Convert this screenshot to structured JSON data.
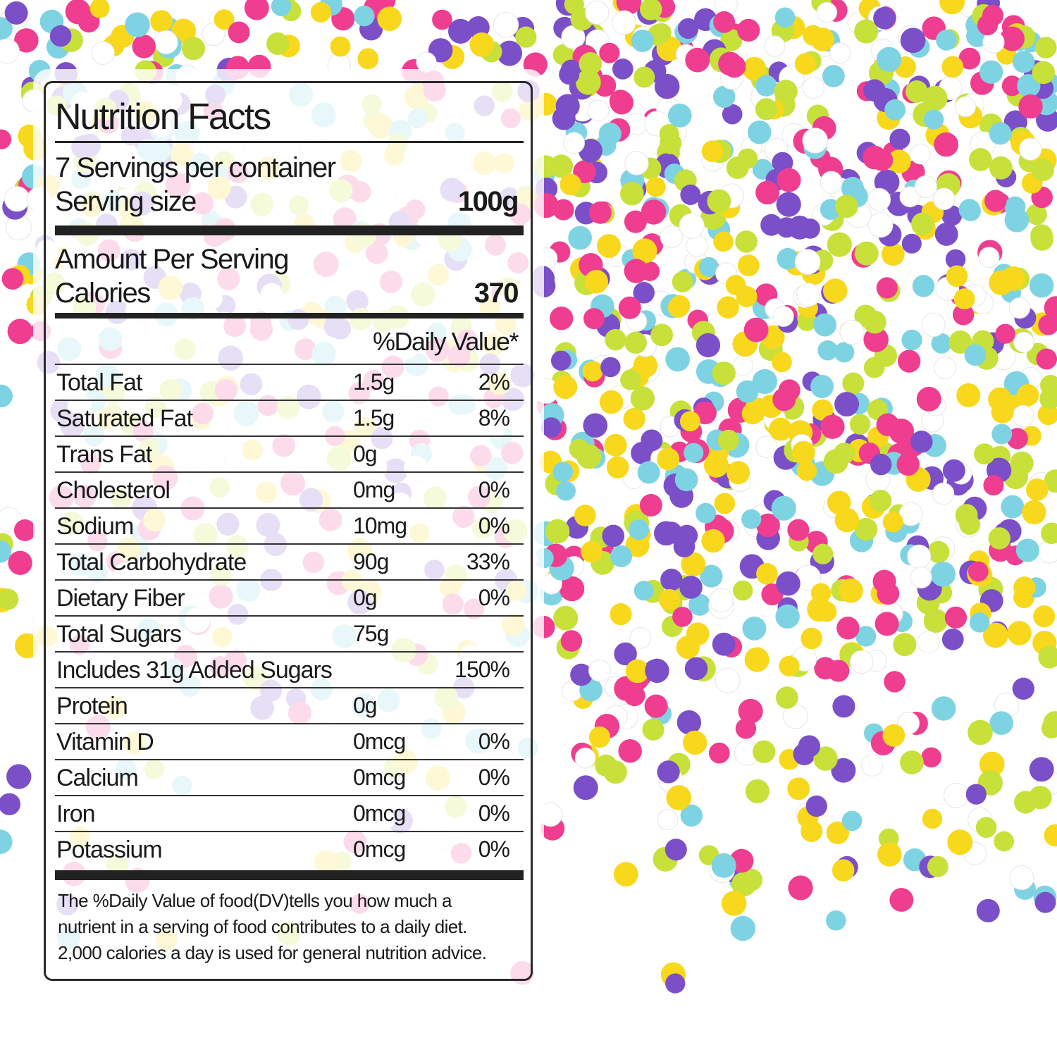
{
  "background": {
    "description_colors": [
      "#c7e03a",
      "#f7d81c",
      "#7ed3e3",
      "#7b4fc8",
      "#ef3d8f",
      "#ffffff"
    ]
  },
  "label": {
    "title": "Nutrition Facts",
    "servings": "7 Servings per container",
    "serving_size_label": "Serving size",
    "serving_size_value": "100g",
    "amount_per_serving": "Amount Per Serving",
    "calories_label": "Calories",
    "calories_value": "370",
    "daily_value_header": "%Daily Value*",
    "rows": [
      {
        "name": "Total Fat",
        "amount": "1.5g",
        "dv": "2%"
      },
      {
        "name": "Saturated Fat",
        "amount": "1.5g",
        "dv": "8%"
      },
      {
        "name": "Trans Fat",
        "amount": "0g",
        "dv": ""
      },
      {
        "name": "Cholesterol",
        "amount": "0mg",
        "dv": "0%"
      },
      {
        "name": "Sodium",
        "amount": "10mg",
        "dv": "0%"
      },
      {
        "name": "Total Carbohydrate",
        "amount": "90g",
        "dv": "33%"
      },
      {
        "name": "Dietary Fiber",
        "amount": "0g",
        "dv": "0%"
      },
      {
        "name": "Total Sugars",
        "amount": "75g",
        "dv": ""
      },
      {
        "name": "Includes 31g Added Sugars",
        "amount": "",
        "dv": "150%"
      },
      {
        "name": "Protein",
        "amount": "0g",
        "dv": ""
      },
      {
        "name": "Vitamin D",
        "amount": "0mcg",
        "dv": "0%"
      },
      {
        "name": "Calcium",
        "amount": "0mcg",
        "dv": "0%"
      },
      {
        "name": "Iron",
        "amount": "0mcg",
        "dv": "0%"
      },
      {
        "name": "Potassium",
        "amount": "0mcg",
        "dv": "0%"
      }
    ],
    "footnote": [
      "The %Daily Value of food(DV)tells you how much a",
      "nutrient in a serving of food contributes to a daily diet.",
      "2,000 calories a day is used for general nutrition advice."
    ]
  }
}
